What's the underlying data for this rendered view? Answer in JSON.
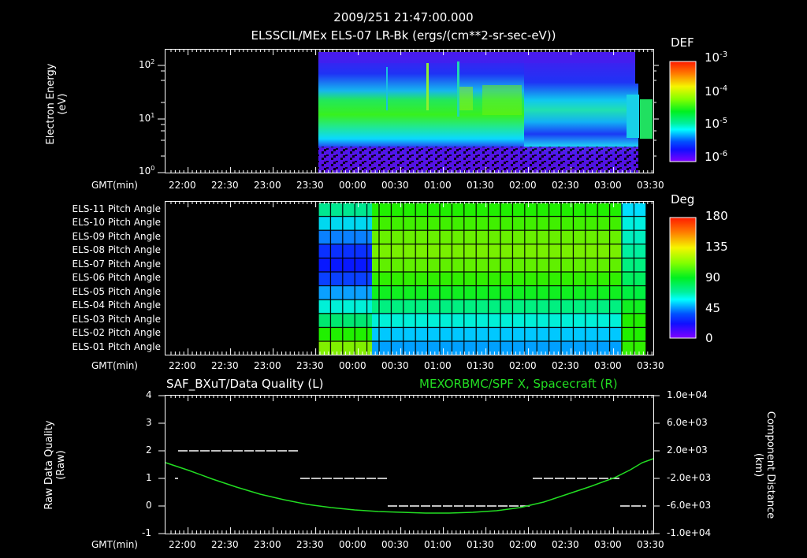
{
  "header": {
    "timestamp": "2009/251 21:47:00.000",
    "subtitle": "ELSSCIL/MEx ELS-07 LR-Bk  (ergs/(cm**2-sr-sec-eV))"
  },
  "x_axis": {
    "label": "GMT(min)",
    "ticks": [
      "22:00",
      "22:30",
      "23:00",
      "23:30",
      "00:00",
      "00:30",
      "01:00",
      "01:30",
      "02:00",
      "02:30",
      "03:00",
      "03:30"
    ]
  },
  "panel1": {
    "ylabel_line1": "Electron Energy",
    "ylabel_line2": "(eV)",
    "yticks": [
      {
        "base": "10",
        "exp": "2"
      },
      {
        "base": "10",
        "exp": "1"
      },
      {
        "base": "10",
        "exp": "0"
      }
    ],
    "colorbar": {
      "title": "DEF",
      "ticks": [
        {
          "base": "10",
          "exp": "-3"
        },
        {
          "base": "10",
          "exp": "-4"
        },
        {
          "base": "10",
          "exp": "-5"
        },
        {
          "base": "10",
          "exp": "-6"
        }
      ]
    }
  },
  "panel2": {
    "rows": [
      "ELS-11 Pitch Angle",
      "ELS-10 Pitch Angle",
      "ELS-09 Pitch Angle",
      "ELS-08 Pitch Angle",
      "ELS-07 Pitch Angle",
      "ELS-06 Pitch Angle",
      "ELS-05 Pitch Angle",
      "ELS-04 Pitch Angle",
      "ELS-03 Pitch Angle",
      "ELS-02 Pitch Angle",
      "ELS-01 Pitch Angle"
    ],
    "colorbar": {
      "title": "Deg",
      "ticks": [
        "180",
        "135",
        "90",
        "45",
        "0"
      ]
    }
  },
  "panel3": {
    "left_title": "SAF_BXuT/Data Quality (L)",
    "right_title": "MEXORBMC/SPF X, Spacecraft (R)",
    "right_title_color": "#22dd22",
    "ylabel_left_line1": "Raw Data Quality",
    "ylabel_left_line2": "(Raw)",
    "ylabel_right_line1": "Component Distance",
    "ylabel_right_line2": "(km)",
    "yticks_left": [
      "4",
      "3",
      "2",
      "1",
      "0",
      "-1"
    ],
    "yticks_right": [
      "1.0e+04",
      "6.0e+03",
      "2.0e+03",
      "-2.0e+03",
      "-6.0e+03",
      "-1.0e+04"
    ]
  },
  "chart_data": [
    {
      "type": "heatmap",
      "title": "ELSSCIL/MEx ELS-07 LR-Bk (ergs/(cm**2-sr-sec-eV))",
      "xlabel": "GMT(min)",
      "ylabel": "Electron Energy (eV)",
      "yscale": "log",
      "ylim": [
        1,
        150
      ],
      "x_ticks": [
        "22:00",
        "22:30",
        "23:00",
        "23:30",
        "00:00",
        "00:30",
        "01:00",
        "01:30",
        "02:00",
        "02:30",
        "03:00",
        "03:30"
      ],
      "data_start": "23:30",
      "colorbar": {
        "label": "DEF",
        "scale": "log",
        "range": [
          1e-06,
          0.001
        ]
      },
      "description": "Green band (~1e-4) centered ~10-20 eV from 23:30 to ~01:45, weaker cyan band after; spikes near 00:25, 00:52, 01:10; gap ~03:10-03:15"
    },
    {
      "type": "heatmap",
      "title": "ELS Pitch Angle",
      "rows": [
        "ELS-11",
        "ELS-10",
        "ELS-09",
        "ELS-08",
        "ELS-07",
        "ELS-06",
        "ELS-05",
        "ELS-04",
        "ELS-03",
        "ELS-02",
        "ELS-01"
      ],
      "colorbar": {
        "label": "Deg",
        "range": [
          0,
          180
        ],
        "ticks": [
          0,
          45,
          90,
          135,
          180
        ]
      },
      "data_start": "23:30",
      "data_end": "03:30"
    },
    {
      "type": "line",
      "title": "SAF_BXuT/Data Quality (L) / MEXORBMC/SPF X, Spacecraft (R)",
      "xlabel": "GMT(min)",
      "ylim_left": [
        -1,
        4
      ],
      "ylim_right": [
        -10000,
        10000
      ],
      "series": [
        {
          "name": "Data Quality (L)",
          "color": "#ffffff",
          "segments": [
            {
              "x": [
                "21:50",
                "21:52"
              ],
              "y": 1
            },
            {
              "x": [
                "21:53",
                "22:58"
              ],
              "y": 2
            },
            {
              "x": [
                "22:58",
                "23:42"
              ],
              "y": 1
            },
            {
              "x": [
                "00:22",
                "02:02"
              ],
              "y": 0
            },
            {
              "x": [
                "02:02",
                "03:05"
              ],
              "y": 1
            },
            {
              "x": [
                "03:05",
                "03:30"
              ],
              "y": 0
            }
          ]
        },
        {
          "name": "SPF X Spacecraft (R, km)",
          "color": "#22dd22",
          "x": [
            "21:47",
            "22:30",
            "23:00",
            "23:30",
            "00:00",
            "00:30",
            "01:00",
            "01:30",
            "02:00",
            "02:30",
            "03:00",
            "03:30"
          ],
          "values": [
            2300,
            -700,
            -2800,
            -4700,
            -6300,
            -7200,
            -7500,
            -7300,
            -6100,
            -3900,
            -1200,
            2400
          ]
        }
      ]
    }
  ]
}
